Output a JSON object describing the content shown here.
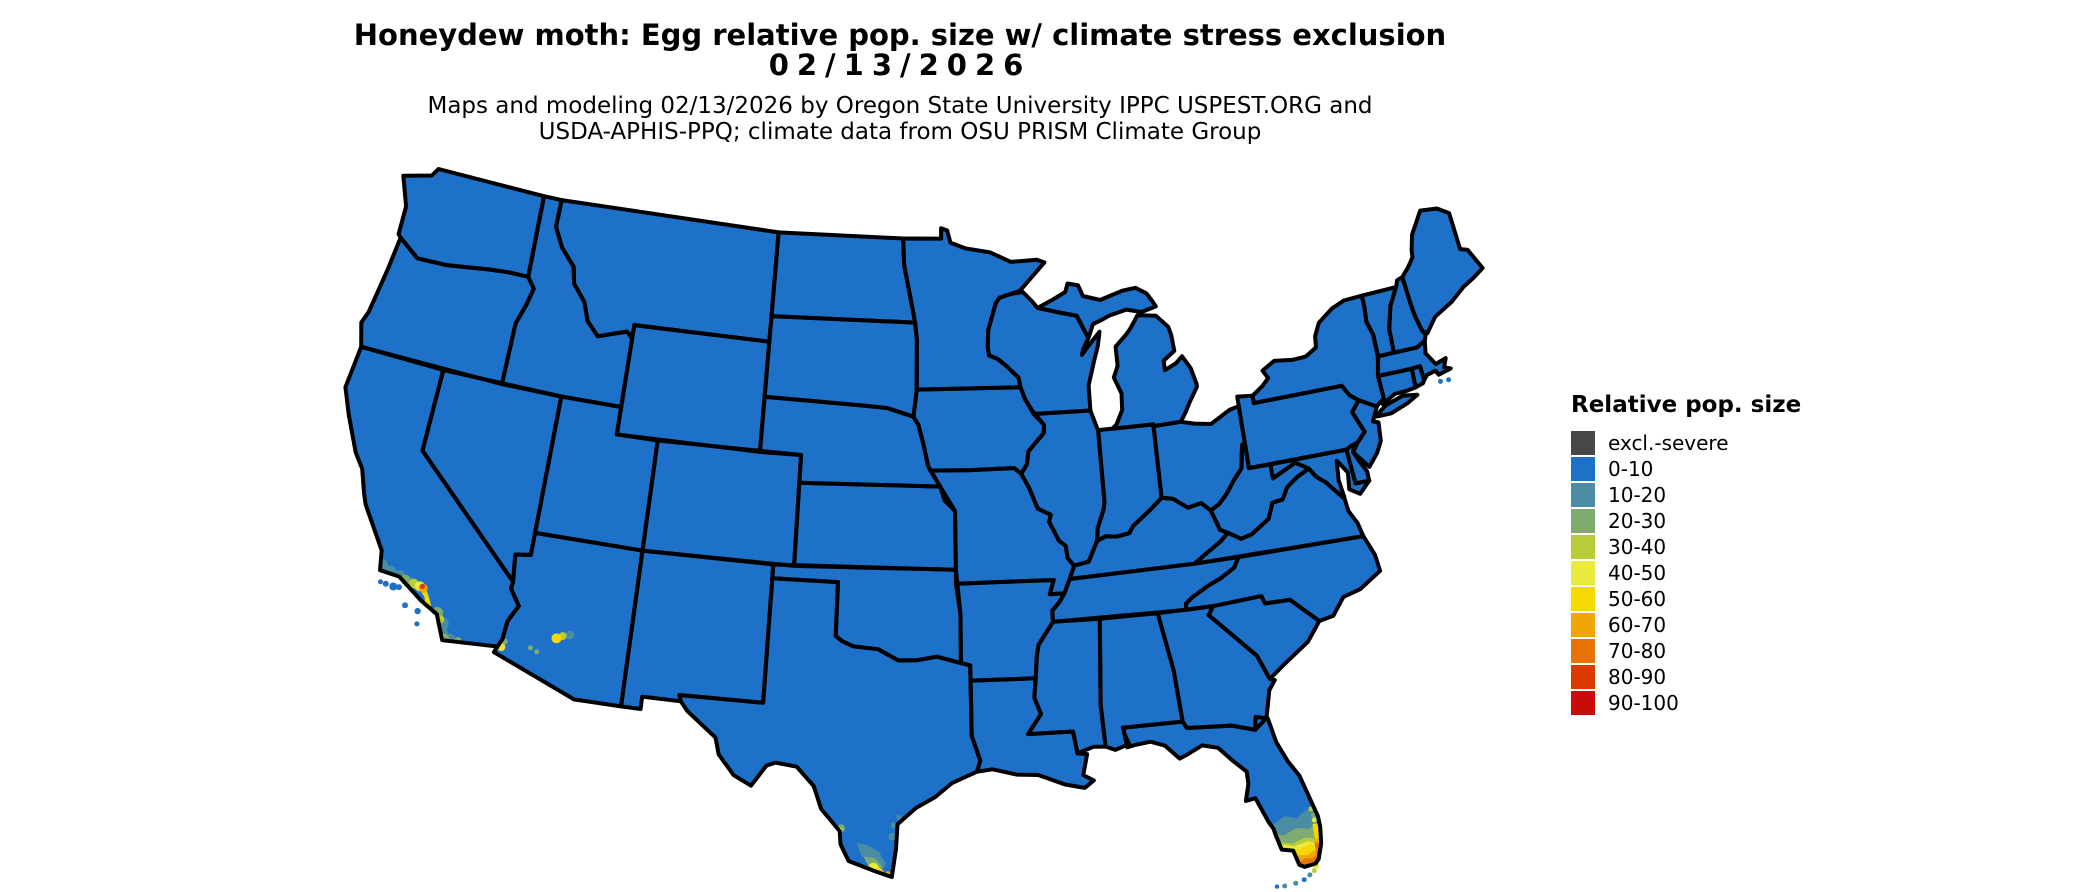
{
  "header": {
    "title_line1": "Honeydew moth: Egg relative pop. size w/ climate stress exclusion",
    "title_line2": "02/13/2026",
    "subtitle_line1": "Maps and modeling 02/13/2026 by Oregon State University IPPC USPEST.ORG and",
    "subtitle_line2": "USDA-APHIS-PPQ; climate data from OSU PRISM Climate Group"
  },
  "legend": {
    "title": "Relative pop. size",
    "items": [
      {
        "label": "excl.-severe",
        "color": "#474747"
      },
      {
        "label": "0-10",
        "color": "#1E71C8"
      },
      {
        "label": "10-20",
        "color": "#4A8CA2"
      },
      {
        "label": "20-30",
        "color": "#7EAC70"
      },
      {
        "label": "30-40",
        "color": "#B8CC38"
      },
      {
        "label": "40-50",
        "color": "#E9EA3D"
      },
      {
        "label": "50-60",
        "color": "#F7D800"
      },
      {
        "label": "60-70",
        "color": "#F0A600"
      },
      {
        "label": "70-80",
        "color": "#E67300"
      },
      {
        "label": "80-90",
        "color": "#D83A00"
      },
      {
        "label": "90-100",
        "color": "#CB0B06"
      }
    ]
  },
  "map": {
    "border_color": "#000000",
    "background_color": "#FFFFFF",
    "base_bin": "0-10"
  },
  "chart_data": {
    "type": "choropleth_map",
    "region": "Contiguous United States",
    "title": "Honeydew moth: Egg relative pop. size w/ climate stress exclusion",
    "date": "02/13/2026",
    "legend_title": "Relative pop. size",
    "bins": [
      {
        "label": "excl.-severe",
        "color": "#474747"
      },
      {
        "label": "0-10",
        "color": "#1E71C8"
      },
      {
        "label": "10-20",
        "color": "#4A8CA2"
      },
      {
        "label": "20-30",
        "color": "#7EAC70"
      },
      {
        "label": "30-40",
        "color": "#B8CC38"
      },
      {
        "label": "40-50",
        "color": "#E9EA3D"
      },
      {
        "label": "50-60",
        "color": "#F7D800"
      },
      {
        "label": "60-70",
        "color": "#F0A600"
      },
      {
        "label": "70-80",
        "color": "#E67300"
      },
      {
        "label": "80-90",
        "color": "#D83A00"
      },
      {
        "label": "90-100",
        "color": "#CB0B06"
      }
    ],
    "dominant_bin": "0-10",
    "hotspots": [
      {
        "area": "Southern California coast (Santa Barbara to San Diego)",
        "bins": "10-20 through 80-90"
      },
      {
        "area": "Phoenix area, Arizona",
        "bins": "10-20 through 50-60"
      },
      {
        "area": "Yuma area, Arizona",
        "bins": "20-30 through 40-50"
      },
      {
        "area": "Laredo area, Texas",
        "bins": "20-30 through 40-50"
      },
      {
        "area": "Lower Rio Grande Valley and South Texas coast",
        "bins": "10-20 through 80-90"
      },
      {
        "area": "South Florida and Florida Keys",
        "bins": "10-20 through 70-80"
      }
    ]
  }
}
